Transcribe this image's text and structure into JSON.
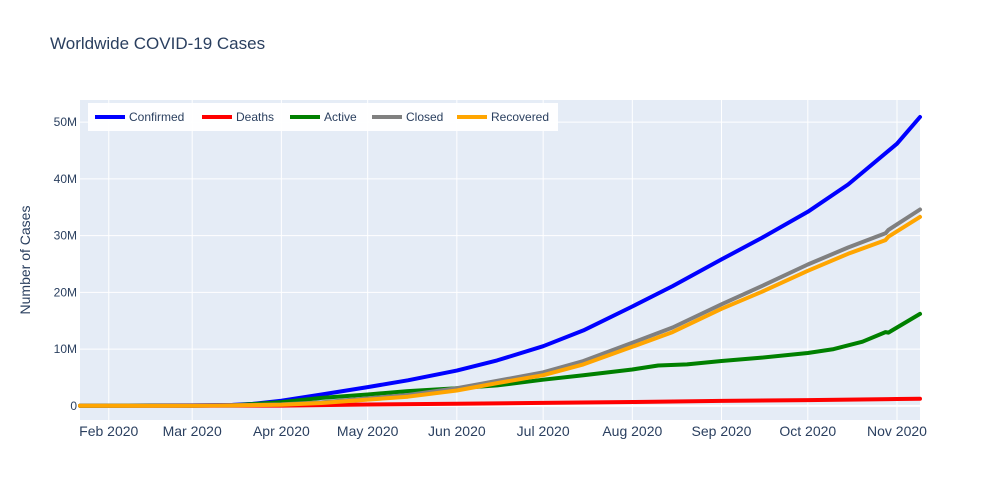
{
  "chart_data": {
    "type": "line",
    "title": "Worldwide COVID-19 Cases",
    "xlabel": "",
    "ylabel": "Number of Cases",
    "xlim": [
      "2020-01-22",
      "2020-11-09"
    ],
    "ylim": [
      -2500000,
      53900000
    ],
    "grid": true,
    "legend_placement": "top-left",
    "x_ticks": [
      {
        "date": "2020-02-01",
        "label": "Feb 2020"
      },
      {
        "date": "2020-03-01",
        "label": "Mar 2020"
      },
      {
        "date": "2020-04-01",
        "label": "Apr 2020"
      },
      {
        "date": "2020-05-01",
        "label": "May 2020"
      },
      {
        "date": "2020-06-01",
        "label": "Jun 2020"
      },
      {
        "date": "2020-07-01",
        "label": "Jul 2020"
      },
      {
        "date": "2020-08-01",
        "label": "Aug 2020"
      },
      {
        "date": "2020-09-01",
        "label": "Sep 2020"
      },
      {
        "date": "2020-10-01",
        "label": "Oct 2020"
      },
      {
        "date": "2020-11-01",
        "label": "Nov 2020"
      }
    ],
    "y_ticks": [
      {
        "value": 0,
        "label": "0"
      },
      {
        "value": 10000000,
        "label": "10M"
      },
      {
        "value": 20000000,
        "label": "20M"
      },
      {
        "value": 30000000,
        "label": "30M"
      },
      {
        "value": 40000000,
        "label": "40M"
      },
      {
        "value": 50000000,
        "label": "50M"
      }
    ],
    "series": [
      {
        "name": "Confirmed",
        "color": "#0000ff",
        "points": [
          [
            "2020-01-22",
            0
          ],
          [
            "2020-02-15",
            70000
          ],
          [
            "2020-03-01",
            90000
          ],
          [
            "2020-03-15",
            170000
          ],
          [
            "2020-03-22",
            340000
          ],
          [
            "2020-04-01",
            900000
          ],
          [
            "2020-04-15",
            2000000
          ],
          [
            "2020-05-01",
            3300000
          ],
          [
            "2020-05-15",
            4500000
          ],
          [
            "2020-06-01",
            6200000
          ],
          [
            "2020-06-15",
            8000000
          ],
          [
            "2020-07-01",
            10500000
          ],
          [
            "2020-07-15",
            13300000
          ],
          [
            "2020-08-01",
            17500000
          ],
          [
            "2020-08-15",
            21100000
          ],
          [
            "2020-09-01",
            25800000
          ],
          [
            "2020-09-15",
            29600000
          ],
          [
            "2020-10-01",
            34200000
          ],
          [
            "2020-10-15",
            39000000
          ],
          [
            "2020-11-01",
            46200000
          ],
          [
            "2020-11-09",
            50900000
          ]
        ]
      },
      {
        "name": "Deaths",
        "color": "#ff0000",
        "points": [
          [
            "2020-01-22",
            0
          ],
          [
            "2020-03-01",
            3000
          ],
          [
            "2020-04-01",
            45000
          ],
          [
            "2020-05-01",
            235000
          ],
          [
            "2020-06-01",
            375000
          ],
          [
            "2020-07-01",
            515000
          ],
          [
            "2020-08-01",
            680000
          ],
          [
            "2020-09-01",
            860000
          ],
          [
            "2020-10-01",
            1010000
          ],
          [
            "2020-11-01",
            1200000
          ],
          [
            "2020-11-09",
            1260000
          ]
        ]
      },
      {
        "name": "Active",
        "color": "#008000",
        "points": [
          [
            "2020-01-22",
            0
          ],
          [
            "2020-02-15",
            55000
          ],
          [
            "2020-03-01",
            40000
          ],
          [
            "2020-03-15",
            80000
          ],
          [
            "2020-04-01",
            650000
          ],
          [
            "2020-04-15",
            1400000
          ],
          [
            "2020-05-01",
            2000000
          ],
          [
            "2020-05-15",
            2600000
          ],
          [
            "2020-06-01",
            3100000
          ],
          [
            "2020-06-15",
            3600000
          ],
          [
            "2020-07-01",
            4600000
          ],
          [
            "2020-07-15",
            5400000
          ],
          [
            "2020-08-01",
            6400000
          ],
          [
            "2020-08-10",
            7100000
          ],
          [
            "2020-08-20",
            7300000
          ],
          [
            "2020-09-01",
            7900000
          ],
          [
            "2020-09-15",
            8500000
          ],
          [
            "2020-10-01",
            9300000
          ],
          [
            "2020-10-10",
            10000000
          ],
          [
            "2020-10-20",
            11300000
          ],
          [
            "2020-10-28",
            13000000
          ],
          [
            "2020-10-29",
            12900000
          ],
          [
            "2020-11-09",
            16200000
          ]
        ]
      },
      {
        "name": "Closed",
        "color": "#808080",
        "points": [
          [
            "2020-01-22",
            0
          ],
          [
            "2020-02-15",
            15000
          ],
          [
            "2020-03-01",
            50000
          ],
          [
            "2020-03-15",
            90000
          ],
          [
            "2020-04-01",
            250000
          ],
          [
            "2020-04-15",
            600000
          ],
          [
            "2020-05-01",
            1300000
          ],
          [
            "2020-05-15",
            1900000
          ],
          [
            "2020-06-01",
            3100000
          ],
          [
            "2020-06-15",
            4400000
          ],
          [
            "2020-07-01",
            5900000
          ],
          [
            "2020-07-15",
            7900000
          ],
          [
            "2020-08-01",
            11100000
          ],
          [
            "2020-08-15",
            13800000
          ],
          [
            "2020-09-01",
            17900000
          ],
          [
            "2020-09-15",
            21100000
          ],
          [
            "2020-10-01",
            24900000
          ],
          [
            "2020-10-15",
            27900000
          ],
          [
            "2020-10-28",
            30400000
          ],
          [
            "2020-10-29",
            31000000
          ],
          [
            "2020-11-09",
            34600000
          ]
        ]
      },
      {
        "name": "Recovered",
        "color": "#ffa500",
        "points": [
          [
            "2020-01-22",
            0
          ],
          [
            "2020-02-15",
            12000
          ],
          [
            "2020-03-01",
            45000
          ],
          [
            "2020-03-15",
            80000
          ],
          [
            "2020-04-01",
            200000
          ],
          [
            "2020-04-15",
            500000
          ],
          [
            "2020-05-01",
            1100000
          ],
          [
            "2020-05-15",
            1600000
          ],
          [
            "2020-06-01",
            2700000
          ],
          [
            "2020-06-15",
            4000000
          ],
          [
            "2020-07-01",
            5400000
          ],
          [
            "2020-07-15",
            7300000
          ],
          [
            "2020-08-01",
            10400000
          ],
          [
            "2020-08-15",
            13000000
          ],
          [
            "2020-09-01",
            17100000
          ],
          [
            "2020-09-15",
            20100000
          ],
          [
            "2020-10-01",
            23800000
          ],
          [
            "2020-10-15",
            26800000
          ],
          [
            "2020-10-28",
            29200000
          ],
          [
            "2020-10-29",
            29800000
          ],
          [
            "2020-11-09",
            33300000
          ]
        ]
      }
    ]
  }
}
